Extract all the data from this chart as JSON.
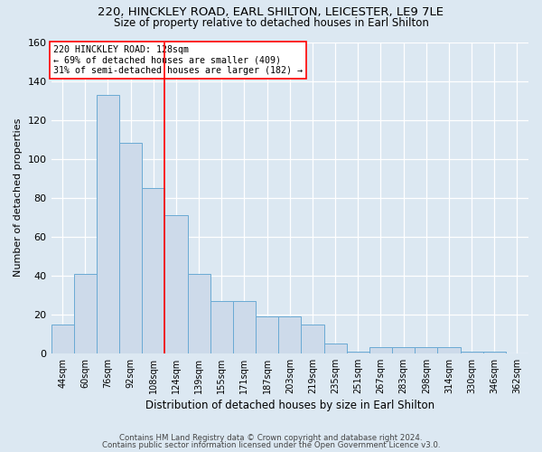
{
  "title1": "220, HINCKLEY ROAD, EARL SHILTON, LEICESTER, LE9 7LE",
  "title2": "Size of property relative to detached houses in Earl Shilton",
  "xlabel": "Distribution of detached houses by size in Earl Shilton",
  "ylabel": "Number of detached properties",
  "categories": [
    "44sqm",
    "60sqm",
    "76sqm",
    "92sqm",
    "108sqm",
    "124sqm",
    "139sqm",
    "155sqm",
    "171sqm",
    "187sqm",
    "203sqm",
    "219sqm",
    "235sqm",
    "251sqm",
    "267sqm",
    "283sqm",
    "298sqm",
    "314sqm",
    "330sqm",
    "346sqm",
    "362sqm"
  ],
  "values": [
    15,
    41,
    133,
    108,
    85,
    71,
    41,
    27,
    27,
    19,
    19,
    15,
    5,
    1,
    3,
    3,
    3,
    3,
    1,
    1,
    0
  ],
  "bar_color": "#cddaea",
  "bar_edge_color": "#6aaad4",
  "red_line_bin_index": 5,
  "annotation_line1": "220 HINCKLEY ROAD: 128sqm",
  "annotation_line2": "← 69% of detached houses are smaller (409)",
  "annotation_line3": "31% of semi-detached houses are larger (182) →",
  "footer1": "Contains HM Land Registry data © Crown copyright and database right 2024.",
  "footer2": "Contains public sector information licensed under the Open Government Licence v3.0.",
  "ylim": [
    0,
    160
  ],
  "yticks": [
    0,
    20,
    40,
    60,
    80,
    100,
    120,
    140,
    160
  ],
  "background_color": "#dce8f2"
}
